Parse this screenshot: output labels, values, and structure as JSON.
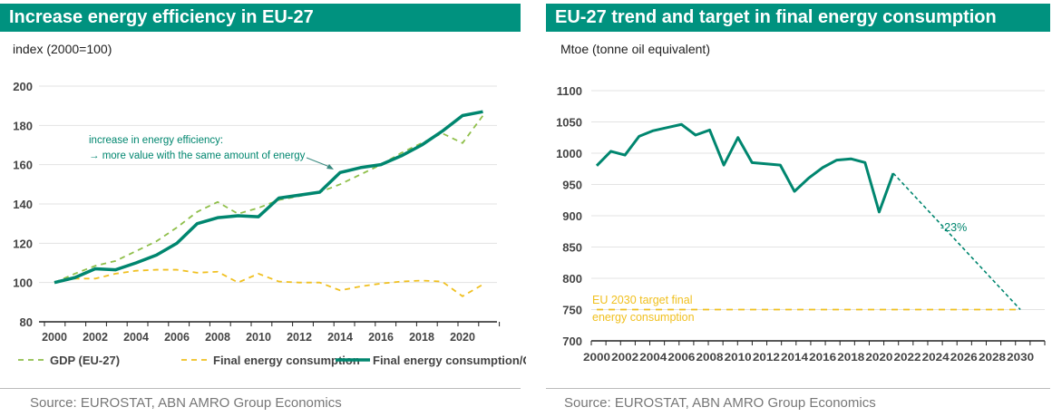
{
  "colors": {
    "teal": "#00866f",
    "header": "#00927f",
    "gdp": "#8fbf4a",
    "fec": "#f0c020",
    "grid": "#e3e3e3"
  },
  "chart_data": [
    {
      "type": "line",
      "title": "Increase energy efficiency in EU-27",
      "ylabel": "index (2000=100)",
      "ylim": [
        80,
        200
      ],
      "yticks": [
        80,
        100,
        120,
        140,
        160,
        180,
        200
      ],
      "xticks": [
        2000,
        2002,
        2004,
        2006,
        2008,
        2010,
        2012,
        2014,
        2016,
        2018,
        2020
      ],
      "x": [
        2000,
        2001,
        2002,
        2003,
        2004,
        2005,
        2006,
        2007,
        2008,
        2009,
        2010,
        2011,
        2012,
        2013,
        2014,
        2015,
        2016,
        2017,
        2018,
        2019,
        2020,
        2021
      ],
      "grid": true,
      "legend": "bottom",
      "series": [
        {
          "name": "GDP (EU-27)",
          "style": "dashed",
          "values": [
            100,
            104.5,
            108.5,
            111,
            116,
            121,
            128,
            136,
            141,
            135,
            138,
            142,
            144,
            146,
            150,
            155,
            160,
            166,
            171,
            176,
            171,
            185
          ]
        },
        {
          "name": "Final energy consumption",
          "style": "dashed",
          "values": [
            100,
            102,
            102,
            104.5,
            106,
            106.5,
            106.5,
            105,
            105.5,
            100,
            104.5,
            100.5,
            100,
            100,
            96,
            98,
            99.5,
            100.5,
            101,
            100.5,
            93,
            99
          ]
        },
        {
          "name": "Final energy consumption/GDP",
          "style": "solid",
          "values": [
            100,
            102.5,
            107,
            106.5,
            110,
            114,
            120,
            130,
            133,
            134,
            133.5,
            143,
            144.5,
            146,
            156,
            158.5,
            160,
            164.5,
            170,
            177,
            185,
            187
          ]
        }
      ],
      "annotation": [
        "increase in energy efficiency:",
        "→ more value with the same amount of energy"
      ],
      "source": "Source: EUROSTAT, ABN AMRO Group Economics"
    },
    {
      "type": "line",
      "title": "EU-27 trend and target in final energy consumption",
      "ylabel": "Mtoe (tonne oil equivalent)",
      "ylim": [
        700,
        1100
      ],
      "yticks": [
        700,
        750,
        800,
        850,
        900,
        950,
        1000,
        1050,
        1100
      ],
      "xticks": [
        2000,
        2002,
        2004,
        2006,
        2008,
        2010,
        2012,
        2014,
        2016,
        2018,
        2020,
        2022,
        2024,
        2026,
        2028,
        2030
      ],
      "x": [
        2000,
        2001,
        2002,
        2003,
        2004,
        2005,
        2006,
        2007,
        2008,
        2009,
        2010,
        2011,
        2012,
        2013,
        2014,
        2015,
        2016,
        2017,
        2018,
        2019,
        2020,
        2021
      ],
      "grid": true,
      "series": [
        {
          "style": "solid",
          "values": [
            980,
            1003,
            997,
            1027,
            1036,
            1041,
            1046,
            1029,
            1037,
            981,
            1025,
            985,
            983,
            981,
            939,
            960,
            977,
            989,
            991,
            985,
            906,
            968
          ]
        }
      ],
      "projection": {
        "x": [
          2021,
          2030
        ],
        "values": [
          968,
          750
        ],
        "label": "-23%"
      },
      "target": {
        "value": 750,
        "label": [
          "EU 2030 target final",
          "energy consumption"
        ]
      },
      "source": "Source: EUROSTAT, ABN AMRO Group Economics"
    }
  ]
}
